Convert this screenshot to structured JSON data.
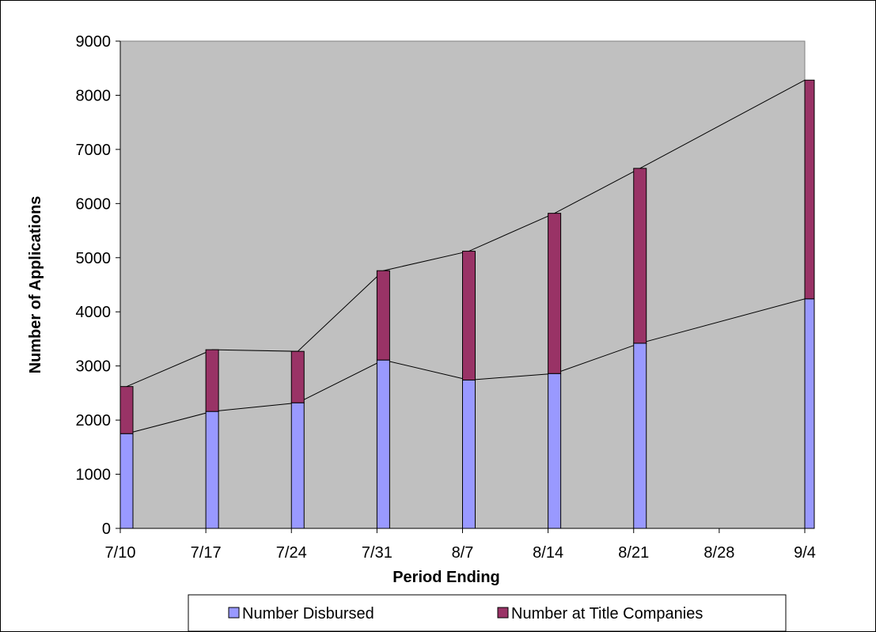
{
  "chart_data": {
    "type": "bar",
    "subtype": "stacked",
    "categories": [
      "7/10",
      "7/17",
      "7/24",
      "7/31",
      "8/7",
      "8/14",
      "8/21",
      "8/28",
      "9/4"
    ],
    "series": [
      {
        "name": "Number Disbursed",
        "color": "#9999ff",
        "values": [
          1750,
          2160,
          2320,
          3110,
          2740,
          2860,
          3420,
          null,
          4240
        ]
      },
      {
        "name": "Number at Title Companies",
        "color": "#993366",
        "values": [
          870,
          1140,
          950,
          1650,
          2380,
          2960,
          3230,
          null,
          4040
        ]
      }
    ],
    "series_lines": true,
    "xlabel": "Period Ending",
    "ylabel": "Number of Applications",
    "ylim": [
      0,
      9000
    ],
    "yticks": [
      0,
      1000,
      2000,
      3000,
      4000,
      5000,
      6000,
      7000,
      8000,
      9000
    ],
    "grid": false,
    "plot_background": "#c0c0c0",
    "legend_position": "bottom"
  }
}
